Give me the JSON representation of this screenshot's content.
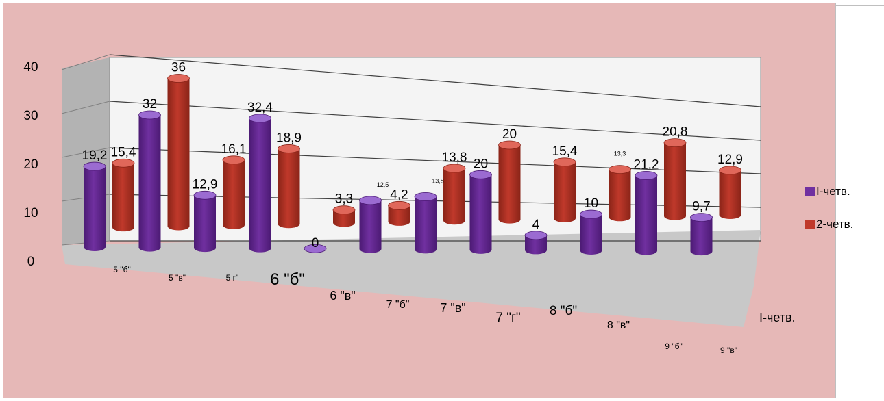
{
  "chart_data": {
    "type": "bar",
    "style": "3d-cylinder",
    "y_ticks": [
      "0",
      "10",
      "20",
      "30",
      "40"
    ],
    "ylim": [
      0,
      40
    ],
    "categories": [
      "5 \"б\"",
      "5 \"в\"",
      "5 г\"",
      "6 \"б\"",
      "6 \"в\"",
      "7 \"б\"",
      "7 \"в\"",
      "7 \"г\"",
      "8 \"б\"",
      "8 \"в\"",
      "9 \"б\"",
      "9 \"в\""
    ],
    "series": [
      {
        "name": "I-четв.",
        "color": "#7030a0",
        "values": [
          19.2,
          32,
          12.9,
          32.4,
          0,
          12.5,
          13.8,
          20,
          4,
          10,
          21.2,
          9.7
        ],
        "labels": [
          "19,2",
          "32",
          "12,9",
          "32,4",
          "0",
          "12,5",
          "13,8",
          "20",
          "4",
          "10",
          "21,2",
          "9,7"
        ]
      },
      {
        "name": "2-четв.",
        "color": "#c0392b",
        "values": [
          15.4,
          36,
          16.1,
          18.9,
          3.3,
          4.2,
          13.8,
          20,
          15.4,
          13.3,
          20.8,
          12.9
        ],
        "labels": [
          "15,4",
          "36",
          "16,1",
          "18,9",
          "3,3",
          "4,2",
          "13,8",
          "20",
          "15,4",
          "13,3",
          "20,8",
          "12,9"
        ]
      }
    ],
    "depth_axis_label": "I-четв.",
    "legend_position": "right",
    "grid": true
  }
}
